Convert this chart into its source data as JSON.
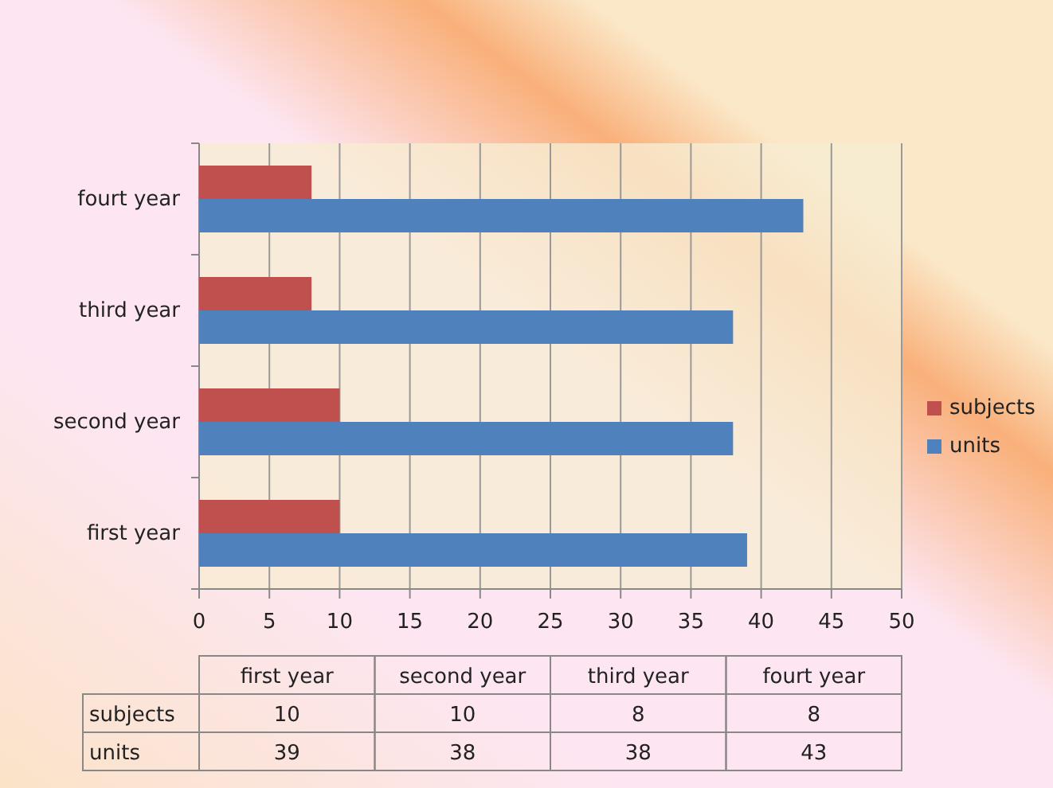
{
  "chart_data": {
    "type": "bar",
    "orientation": "horizontal",
    "categories": [
      "fourt year",
      "third year",
      "second year",
      "first year"
    ],
    "series": [
      {
        "name": "subjects",
        "color": "#c0504d",
        "values": [
          8,
          8,
          10,
          10
        ]
      },
      {
        "name": "units",
        "color": "#4f81bd",
        "values": [
          43,
          38,
          38,
          39
        ]
      }
    ],
    "xlim": [
      0,
      50
    ],
    "xticks": [
      0,
      5,
      10,
      15,
      20,
      25,
      30,
      35,
      40,
      45,
      50
    ],
    "grid": "x",
    "legend": "right",
    "annotations": [
      "10",
      "10",
      "8",
      "8",
      "39",
      "38",
      "38",
      "43"
    ]
  }
}
